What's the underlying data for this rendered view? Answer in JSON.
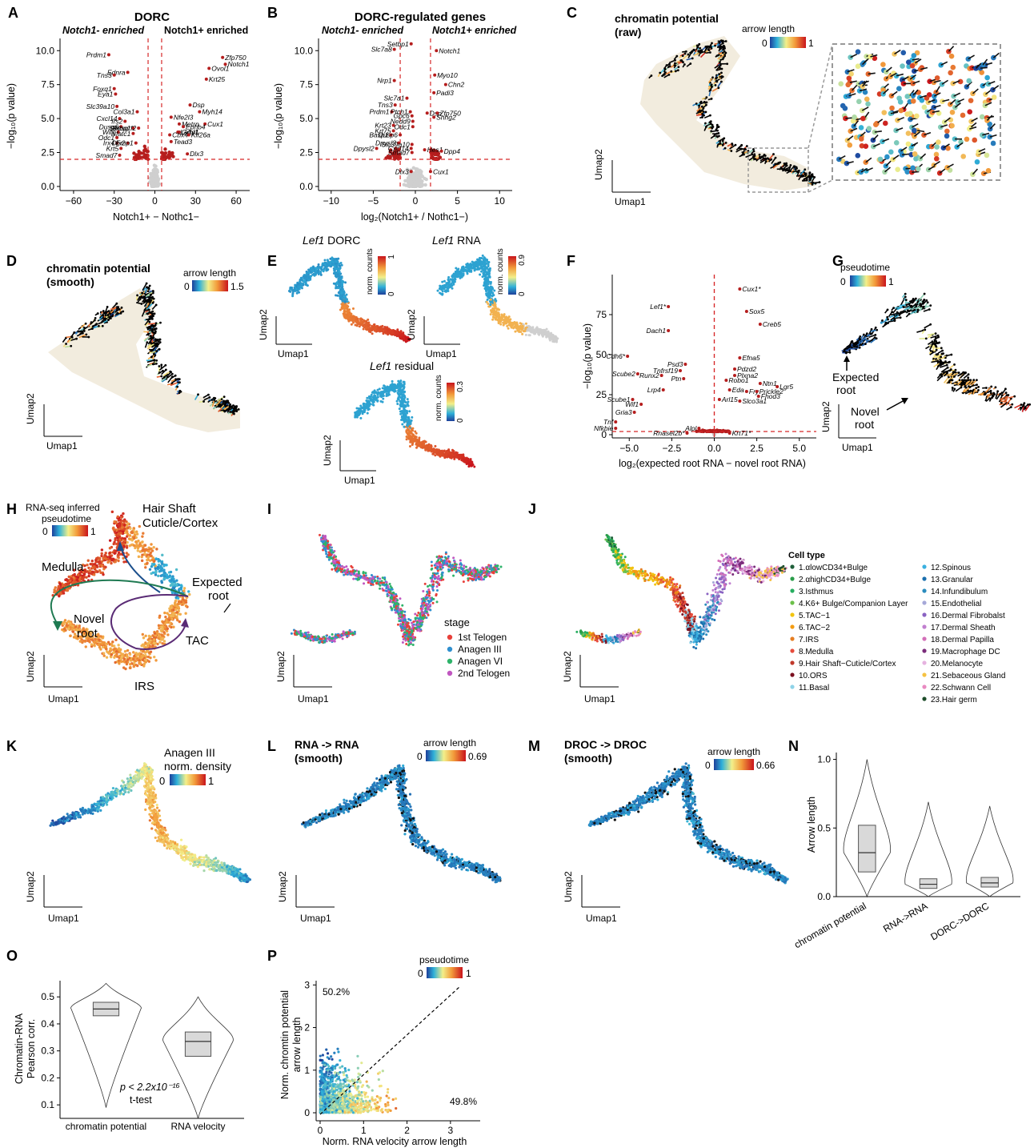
{
  "panels": {
    "A": {
      "letter": "A",
      "title": "DORC",
      "left_header": "Notch1- enriched",
      "right_header": "Notch1+ enriched",
      "ylabel": "−log₁₀(p value)",
      "xlabel": "Notch1+ − Nothc1−",
      "xticks": [
        "−60",
        "−30",
        "0",
        "30",
        "60"
      ],
      "yticks": [
        "0.0",
        "2.5",
        "5.0",
        "7.5",
        "10.0"
      ],
      "genes": [
        {
          "t": "Prdm1",
          "x": -34,
          "y": 9.7
        },
        {
          "t": "Ednra",
          "x": -20,
          "y": 8.4
        },
        {
          "t": "Tns3",
          "x": -30,
          "y": 8.2
        },
        {
          "t": "Foxq1",
          "x": -30,
          "y": 7.2
        },
        {
          "t": "Eya1",
          "x": -29,
          "y": 6.8
        },
        {
          "t": "Slc39a10",
          "x": -28,
          "y": 5.9
        },
        {
          "t": "Col3a1",
          "x": -13,
          "y": 5.5
        },
        {
          "t": "Cxcl14",
          "x": -26,
          "y": 5.0
        },
        {
          "t": "Irs2",
          "x": -22,
          "y": 4.8
        },
        {
          "t": "Dusp6",
          "x": -25,
          "y": 4.4
        },
        {
          "t": "Setbp1",
          "x": -16,
          "y": 4.3
        },
        {
          "t": "Rasgrf2",
          "x": -12,
          "y": 4.3
        },
        {
          "t": "Wif1",
          "x": -27,
          "y": 4.0
        },
        {
          "t": "Nfatc1",
          "x": -16,
          "y": 3.9
        },
        {
          "t": "Odc1",
          "x": -28,
          "y": 3.6
        },
        {
          "t": "Irx4",
          "x": -28,
          "y": 3.2
        },
        {
          "t": "Dlx2",
          "x": -20,
          "y": 3.2
        },
        {
          "t": "Emp1",
          "x": -14,
          "y": 3.2
        },
        {
          "t": "Krt5",
          "x": -25,
          "y": 2.8
        },
        {
          "t": "Smad7",
          "x": -26,
          "y": 2.3
        },
        {
          "t": "Zfp750",
          "x": 50,
          "y": 9.5
        },
        {
          "t": "Notch1",
          "x": 52,
          "y": 9.0
        },
        {
          "t": "Ovol1",
          "x": 40,
          "y": 8.7
        },
        {
          "t": "Krt25",
          "x": 38,
          "y": 7.9
        },
        {
          "t": "Dsp",
          "x": 26,
          "y": 6.0
        },
        {
          "t": "Myh14",
          "x": 33,
          "y": 5.5
        },
        {
          "t": "Nfe2l3",
          "x": 12,
          "y": 5.1
        },
        {
          "t": "Metrn",
          "x": 18,
          "y": 4.6
        },
        {
          "t": "Cux1",
          "x": 37,
          "y": 4.6
        },
        {
          "t": "Ephb4",
          "x": 21,
          "y": 4.4
        },
        {
          "t": "Grhl1",
          "x": 18,
          "y": 4.0
        },
        {
          "t": "Lefty1",
          "x": 17,
          "y": 4.0
        },
        {
          "t": "Cbx4",
          "x": 11,
          "y": 3.8
        },
        {
          "t": "Kif26a",
          "x": 25,
          "y": 3.8
        },
        {
          "t": "Tead3",
          "x": 12,
          "y": 3.3
        },
        {
          "t": "Dlx3",
          "x": 24,
          "y": 2.4
        }
      ]
    },
    "B": {
      "letter": "B",
      "title": "DORC-regulated genes",
      "left_header": "Notch1- enriched",
      "right_header": "Notch1+ enriched",
      "ylabel": "−log₁₀(p value)",
      "xlabel": "log₂(Notch1+ / Nothc1−)",
      "xticks": [
        "−10",
        "−5",
        "0",
        "5",
        "10"
      ],
      "yticks": [
        "0.0",
        "2.5",
        "5.0",
        "7.5",
        "10.0"
      ],
      "genes": [
        {
          "t": "Setbp1",
          "x": -0.5,
          "y": 10.5
        },
        {
          "t": "Slc7a8",
          "x": -2.5,
          "y": 10.1
        },
        {
          "t": "Notch1",
          "x": 2.5,
          "y": 10.0
        },
        {
          "t": "Myo10",
          "x": 2.3,
          "y": 8.2
        },
        {
          "t": "Nrp1",
          "x": -2.5,
          "y": 7.8
        },
        {
          "t": "Chn2",
          "x": 3.6,
          "y": 7.5
        },
        {
          "t": "Padi3",
          "x": 2.2,
          "y": 6.9
        },
        {
          "t": "Slc7a1",
          "x": -1.0,
          "y": 6.5
        },
        {
          "t": "Tns3",
          "x": -2.4,
          "y": 6.0
        },
        {
          "t": "Prdm1",
          "x": -2.8,
          "y": 5.5
        },
        {
          "t": "Ptch1",
          "x": -0.6,
          "y": 5.5
        },
        {
          "t": "Dsp",
          "x": 1.4,
          "y": 5.4
        },
        {
          "t": "Zfp750",
          "x": 2.6,
          "y": 5.4
        },
        {
          "t": "Gpc6",
          "x": -0.4,
          "y": 5.2
        },
        {
          "t": "Snhg2",
          "x": 2.2,
          "y": 5.1
        },
        {
          "t": "Nedd9",
          "x": -0.3,
          "y": 4.8
        },
        {
          "t": "Krt23",
          "x": -2.6,
          "y": 4.5
        },
        {
          "t": "Odc1",
          "x": -0.3,
          "y": 4.4
        },
        {
          "t": "Krt75",
          "x": -2.6,
          "y": 4.1
        },
        {
          "t": "Basp1",
          "x": -2.9,
          "y": 3.8
        },
        {
          "t": "Dusp6",
          "x": -1.8,
          "y": 3.8
        },
        {
          "t": "Dpysl3",
          "x": -2.0,
          "y": 3.2
        },
        {
          "t": "Slc39a10",
          "x": -0.4,
          "y": 3.1
        },
        {
          "t": "Dpysl2",
          "x": -4.6,
          "y": 2.8
        },
        {
          "t": "Cxcl14",
          "x": -0.5,
          "y": 2.8
        },
        {
          "t": "Hes1",
          "x": 1.1,
          "y": 2.7
        },
        {
          "t": "Smad7",
          "x": -0.4,
          "y": 2.5
        },
        {
          "t": "Dpp4",
          "x": 3.1,
          "y": 2.6
        },
        {
          "t": "Dlx3",
          "x": -0.5,
          "y": 1.1
        },
        {
          "t": "Cux1",
          "x": 1.8,
          "y": 1.1
        }
      ]
    },
    "C": {
      "letter": "C",
      "title_line1": "chromatin potential",
      "title_line2": "(raw)",
      "legend_title": "arrow length",
      "legend_min": "0",
      "legend_max": "1",
      "xaxis": "Umap1",
      "yaxis": "Umap2"
    },
    "D": {
      "letter": "D",
      "title_line1": "chromatin potential",
      "title_line2": "(smooth)",
      "legend_title": "arrow length",
      "legend_min": "0",
      "legend_max": "1.5",
      "xaxis": "Umap1",
      "yaxis": "Umap2"
    },
    "E": {
      "letter": "E",
      "title1_gene": "Lef1",
      "title1_rest": " DORC",
      "title2_gene": "Lef1",
      "title2_rest": " RNA",
      "title3_gene": "Lef1",
      "title3_rest": " residual",
      "scale_label": "norm. counts",
      "s1_min": "0",
      "s1_max": "1",
      "s2_min": "0",
      "s2_max": "0.9",
      "s3_min": "0",
      "s3_max": "0.3",
      "xaxis": "Umap1",
      "yaxis": "Umap2"
    },
    "F": {
      "letter": "F",
      "ylabel": "−log₁₀(p value)",
      "xlabel": "log₂(expected root RNA − novel root RNA)",
      "xticks": [
        "−5.0",
        "−2.5",
        "0.0",
        "2.5",
        "5.0"
      ],
      "yticks": [
        "0",
        "25",
        "50",
        "75"
      ],
      "genes": [
        {
          "t": "Cux1*",
          "x": 1.5,
          "y": 91
        },
        {
          "t": "Lef1*",
          "x": -2.7,
          "y": 80
        },
        {
          "t": "Sox5",
          "x": 1.9,
          "y": 77
        },
        {
          "t": "Creb5",
          "x": 2.7,
          "y": 69
        },
        {
          "t": "Dach1",
          "x": -2.7,
          "y": 65
        },
        {
          "t": "Cdh6*",
          "x": -5.1,
          "y": 49
        },
        {
          "t": "Efna5",
          "x": 1.5,
          "y": 48
        },
        {
          "t": "Psd3",
          "x": -1.7,
          "y": 44
        },
        {
          "t": "Pdzd2",
          "x": 1.2,
          "y": 41
        },
        {
          "t": "Tnfrsf19",
          "x": -2.0,
          "y": 40
        },
        {
          "t": "Scube2",
          "x": -4.5,
          "y": 38
        },
        {
          "t": "Runx2",
          "x": -3.1,
          "y": 37
        },
        {
          "t": "Plxna2",
          "x": 1.2,
          "y": 37
        },
        {
          "t": "Ptn",
          "x": -1.8,
          "y": 35
        },
        {
          "t": "Robo1",
          "x": 0.7,
          "y": 34
        },
        {
          "t": "Ntn1",
          "x": 2.7,
          "y": 32
        },
        {
          "t": "Lgr5",
          "x": 3.7,
          "y": 30
        },
        {
          "t": "Lrp4",
          "x": -3.0,
          "y": 28
        },
        {
          "t": "Eda",
          "x": 0.9,
          "y": 28
        },
        {
          "t": "Fry",
          "x": 1.9,
          "y": 27
        },
        {
          "t": "Prickle2",
          "x": 2.5,
          "y": 27
        },
        {
          "t": "Fhod3",
          "x": 2.6,
          "y": 24
        },
        {
          "t": "Arl15",
          "x": 0.3,
          "y": 22
        },
        {
          "t": "Slco3a1",
          "x": 1.5,
          "y": 21
        },
        {
          "t": "Scube1",
          "x": -4.8,
          "y": 22
        },
        {
          "t": "Wif1",
          "x": -4.3,
          "y": 19
        },
        {
          "t": "Gria3",
          "x": -4.7,
          "y": 14
        },
        {
          "t": "Tnf",
          "x": -5.8,
          "y": 8
        },
        {
          "t": "Nfkbie",
          "x": -5.8,
          "y": 4
        },
        {
          "t": "Rnasel2b*",
          "x": -1.6,
          "y": 1
        },
        {
          "t": "Krt71*",
          "x": 0.9,
          "y": 1
        },
        {
          "t": "Alpl",
          "x": -0.9,
          "y": 4
        }
      ]
    },
    "G": {
      "letter": "G",
      "legend_title": "pseudotime",
      "legend_min": "0",
      "legend_max": "1",
      "expected": "Expected",
      "expected2": "root",
      "novel": "Novel",
      "novel2": "root",
      "xaxis": "Umap1",
      "yaxis": "Umap2"
    },
    "H": {
      "letter": "H",
      "legend_line1": "RNA-seq inferred",
      "legend_line2": "pseudotime",
      "legend_min": "0",
      "legend_max": "1",
      "hair_shaft": "Hair Shaft",
      "cuticle": "Cuticle/Cortex",
      "medulla": "Medulla",
      "expected": "Expected",
      "expected2": "root",
      "novel": "Novel",
      "novel2": "root",
      "tac": "TAC",
      "irs": "IRS",
      "xaxis": "Umap1",
      "yaxis": "Umap2"
    },
    "I": {
      "letter": "I",
      "legend_title": "stage",
      "xaxis": "Umap1",
      "yaxis": "Umap2",
      "stages": [
        {
          "name": "1st Telogen",
          "color": "#e8403a"
        },
        {
          "name": "Anagen III",
          "color": "#2f8fcf"
        },
        {
          "name": "Anagen VI",
          "color": "#2eb36a"
        },
        {
          "name": "2nd Telogen",
          "color": "#c056c0"
        }
      ]
    },
    "J": {
      "letter": "J",
      "legend_title": "Cell type",
      "xaxis": "Umap1",
      "yaxis": "Umap2",
      "types_left": [
        {
          "name": "1.αlowCD34+Bulge",
          "color": "#1f5f3a"
        },
        {
          "name": "2.αhighCD34+Bulge",
          "color": "#2a9d4a"
        },
        {
          "name": "3.Isthmus",
          "color": "#27ae60"
        },
        {
          "name": "4.K6+ Bulge/Companion Layer",
          "color": "#6cc04a"
        },
        {
          "name": "5.TAC−1",
          "color": "#f1c40f"
        },
        {
          "name": "6.TAC−2",
          "color": "#f39c12"
        },
        {
          "name": "7.IRS",
          "color": "#e67e22"
        },
        {
          "name": "8.Medulla",
          "color": "#e74c3c"
        },
        {
          "name": "9.Hair Shaft−Cuticle/Cortex",
          "color": "#c0392b"
        },
        {
          "name": "10.ORS",
          "color": "#7b1020"
        },
        {
          "name": "11.Basal",
          "color": "#8fd3e8"
        }
      ],
      "types_right": [
        {
          "name": "12.Spinous",
          "color": "#3ab0e0"
        },
        {
          "name": "13.Granular",
          "color": "#1b6fae"
        },
        {
          "name": "14.Infundibulum",
          "color": "#2b8cbe"
        },
        {
          "name": "15.Endothelial",
          "color": "#a6a8d8"
        },
        {
          "name": "16.Dermal Fibrobalst",
          "color": "#8a63c2"
        },
        {
          "name": "17.Dermal Sheath",
          "color": "#c17fcf"
        },
        {
          "name": "18.Dermal Papilla",
          "color": "#d36fb8"
        },
        {
          "name": "19.Macrophage DC",
          "color": "#7a2c7a"
        },
        {
          "name": "20.Melanocyte",
          "color": "#e6b3e0"
        },
        {
          "name": "21.Sebaceous Gland",
          "color": "#f5c242"
        },
        {
          "name": "22.Schwann Cell",
          "color": "#e98ac1"
        },
        {
          "name": "23.Hair germ",
          "color": "#1d4d2a"
        }
      ]
    },
    "K": {
      "letter": "K",
      "legend_line1": "Anagen III",
      "legend_line2": "norm. density",
      "legend_min": "0",
      "legend_max": "1",
      "xaxis": "Umap1",
      "yaxis": "Umap2"
    },
    "L": {
      "letter": "L",
      "title_line1": "RNA -> RNA",
      "title_line2": "(smooth)",
      "legend_title": "arrow length",
      "legend_min": "0",
      "legend_max": "0.69",
      "xaxis": "Umap1",
      "yaxis": "Umap2"
    },
    "M": {
      "letter": "M",
      "title_line1": "DROC -> DROC",
      "title_line2": "(smooth)",
      "legend_title": "arrow length",
      "legend_min": "0",
      "legend_max": "0.66",
      "xaxis": "Umap1",
      "yaxis": "Umap2"
    },
    "N": {
      "letter": "N",
      "ylabel": "Arrow length",
      "yticks": [
        "0.0",
        "0.5",
        "1.0"
      ],
      "categories": [
        "chromatin potential",
        "RNA->RNA",
        "DORC->DORC"
      ]
    },
    "O": {
      "letter": "O",
      "ylabel1": "Chromatin-RNA",
      "ylabel2": "Pearson corr.",
      "yticks": [
        "0.1",
        "0.2",
        "0.3",
        "0.4",
        "0.5"
      ],
      "categories": [
        "chromatin potential",
        "RNA velocity"
      ],
      "pval": "p < 2.2x10⁻¹⁶",
      "test": "t-test"
    },
    "P": {
      "letter": "P",
      "legend_title": "pseudotime",
      "legend_min": "0",
      "legend_max": "1",
      "ylabel1": "Norm. chromtin potential",
      "ylabel2": "arrow length",
      "xlabel": "Norm. RNA velocity arrow length",
      "xticks": [
        "0",
        "1",
        "2",
        "3"
      ],
      "yticks": [
        "0",
        "1",
        "2",
        "3"
      ],
      "pct_top": "50.2%",
      "pct_bottom": "49.8%"
    }
  },
  "chart_data": [
    {
      "type": "box",
      "panel": "N",
      "categories": [
        "chromatin potential",
        "RNA->RNA",
        "DORC->DORC"
      ],
      "stats": [
        {
          "median": 0.32,
          "q1": 0.18,
          "q3": 0.52,
          "min": 0.0,
          "max": 1.0
        },
        {
          "median": 0.09,
          "q1": 0.06,
          "q3": 0.13,
          "min": 0.0,
          "max": 0.69
        },
        {
          "median": 0.1,
          "q1": 0.07,
          "q3": 0.14,
          "min": 0.0,
          "max": 0.66
        }
      ],
      "ylabel": "Arrow length",
      "ylim": [
        0,
        1.05
      ]
    },
    {
      "type": "box",
      "panel": "O",
      "categories": [
        "chromatin potential",
        "RNA velocity"
      ],
      "stats": [
        {
          "median": 0.455,
          "q1": 0.43,
          "q3": 0.48,
          "min": 0.09,
          "max": 0.55
        },
        {
          "median": 0.335,
          "q1": 0.28,
          "q3": 0.37,
          "min": 0.05,
          "max": 0.5
        }
      ],
      "ylabel": "Chromatin-RNA Pearson corr.",
      "ylim": [
        0.05,
        0.56
      ]
    }
  ]
}
